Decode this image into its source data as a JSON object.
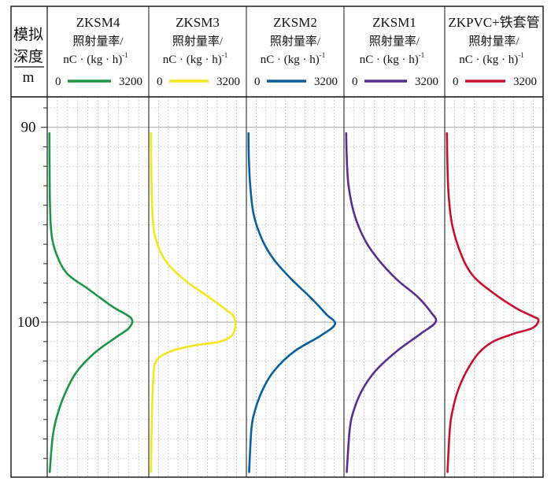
{
  "depth_header": {
    "line1": "模拟",
    "line2": "深度",
    "line3": "m"
  },
  "chart_data": {
    "type": "line",
    "title": "",
    "ylabel": "模拟深度 m",
    "ylim": [
      89,
      107.8
    ],
    "y_tick_labels": [
      "90",
      "100"
    ],
    "y_ticks_major": [
      90,
      100
    ],
    "y_ticks_minor": [
      89,
      91,
      92,
      93,
      94,
      95,
      96,
      97,
      98,
      99,
      101,
      102,
      103,
      104,
      105,
      106,
      107
    ],
    "grid": true,
    "orientation": "vertical-depth",
    "x_unit_label": "照射量率/",
    "x_unit_formula": "nC · (kg · h)",
    "x_unit_exp": "-1",
    "xlim": [
      0,
      3200
    ],
    "x_range_labels": [
      "0",
      "3200"
    ],
    "series": [
      {
        "name": "ZKSM4",
        "color": "#1e9447",
        "points": [
          [
            90.3,
            20
          ],
          [
            92,
            25
          ],
          [
            94,
            40
          ],
          [
            95.5,
            90
          ],
          [
            96.5,
            250
          ],
          [
            97.5,
            600
          ],
          [
            98.3,
            1300
          ],
          [
            99.2,
            2100
          ],
          [
            99.8,
            2720
          ],
          [
            100.3,
            2650
          ],
          [
            100.8,
            2200
          ],
          [
            101.6,
            1500
          ],
          [
            102.6,
            900
          ],
          [
            103.8,
            500
          ],
          [
            105,
            240
          ],
          [
            106,
            120
          ],
          [
            107.7,
            30
          ]
        ]
      },
      {
        "name": "ZKSM3",
        "color": "#f5e61e",
        "points": [
          [
            90.3,
            20
          ],
          [
            92,
            30
          ],
          [
            94,
            60
          ],
          [
            95.5,
            150
          ],
          [
            96.8,
            500
          ],
          [
            97.8,
            1150
          ],
          [
            98.6,
            1900
          ],
          [
            99.3,
            2550
          ],
          [
            99.8,
            2900
          ],
          [
            100.6,
            2850
          ],
          [
            101.0,
            2400
          ],
          [
            101.2,
            1500
          ],
          [
            101.5,
            700
          ],
          [
            102,
            200
          ],
          [
            103,
            100
          ],
          [
            105,
            50
          ],
          [
            107.7,
            20
          ]
        ]
      },
      {
        "name": "ZKSM2",
        "color": "#0a5e9e",
        "points": [
          [
            90.3,
            20
          ],
          [
            91.5,
            30
          ],
          [
            93,
            80
          ],
          [
            94.5,
            200
          ],
          [
            95.8,
            500
          ],
          [
            96.8,
            900
          ],
          [
            97.8,
            1500
          ],
          [
            98.8,
            2200
          ],
          [
            99.6,
            2700
          ],
          [
            100.1,
            3000
          ],
          [
            100.7,
            2500
          ],
          [
            101.5,
            1600
          ],
          [
            102.5,
            900
          ],
          [
            103.5,
            500
          ],
          [
            104.5,
            250
          ],
          [
            105.5,
            120
          ],
          [
            107.7,
            40
          ]
        ]
      },
      {
        "name": "ZKSM1",
        "color": "#5a2d91",
        "points": [
          [
            90.3,
            20
          ],
          [
            91.5,
            40
          ],
          [
            93,
            100
          ],
          [
            94.5,
            300
          ],
          [
            95.8,
            650
          ],
          [
            96.8,
            1100
          ],
          [
            97.8,
            1700
          ],
          [
            98.7,
            2400
          ],
          [
            99.5,
            2850
          ],
          [
            100.0,
            3000
          ],
          [
            100.6,
            2500
          ],
          [
            101.5,
            1700
          ],
          [
            102.5,
            1000
          ],
          [
            103.5,
            550
          ],
          [
            104.5,
            280
          ],
          [
            105.5,
            140
          ],
          [
            107.7,
            40
          ]
        ]
      },
      {
        "name": "ZKPVC+铁套管",
        "color": "#c8102e",
        "points": [
          [
            90.3,
            20
          ],
          [
            92,
            40
          ],
          [
            93.5,
            80
          ],
          [
            95,
            200
          ],
          [
            96.5,
            500
          ],
          [
            97.6,
            900
          ],
          [
            98.5,
            1600
          ],
          [
            99.3,
            2400
          ],
          [
            99.7,
            2950
          ],
          [
            99.9,
            3150
          ],
          [
            100.3,
            2950
          ],
          [
            100.6,
            2300
          ],
          [
            101.0,
            1600
          ],
          [
            101.6,
            1100
          ],
          [
            102.5,
            700
          ],
          [
            103.5,
            400
          ],
          [
            104.5,
            220
          ],
          [
            105.5,
            120
          ],
          [
            107.7,
            40
          ]
        ]
      }
    ]
  }
}
